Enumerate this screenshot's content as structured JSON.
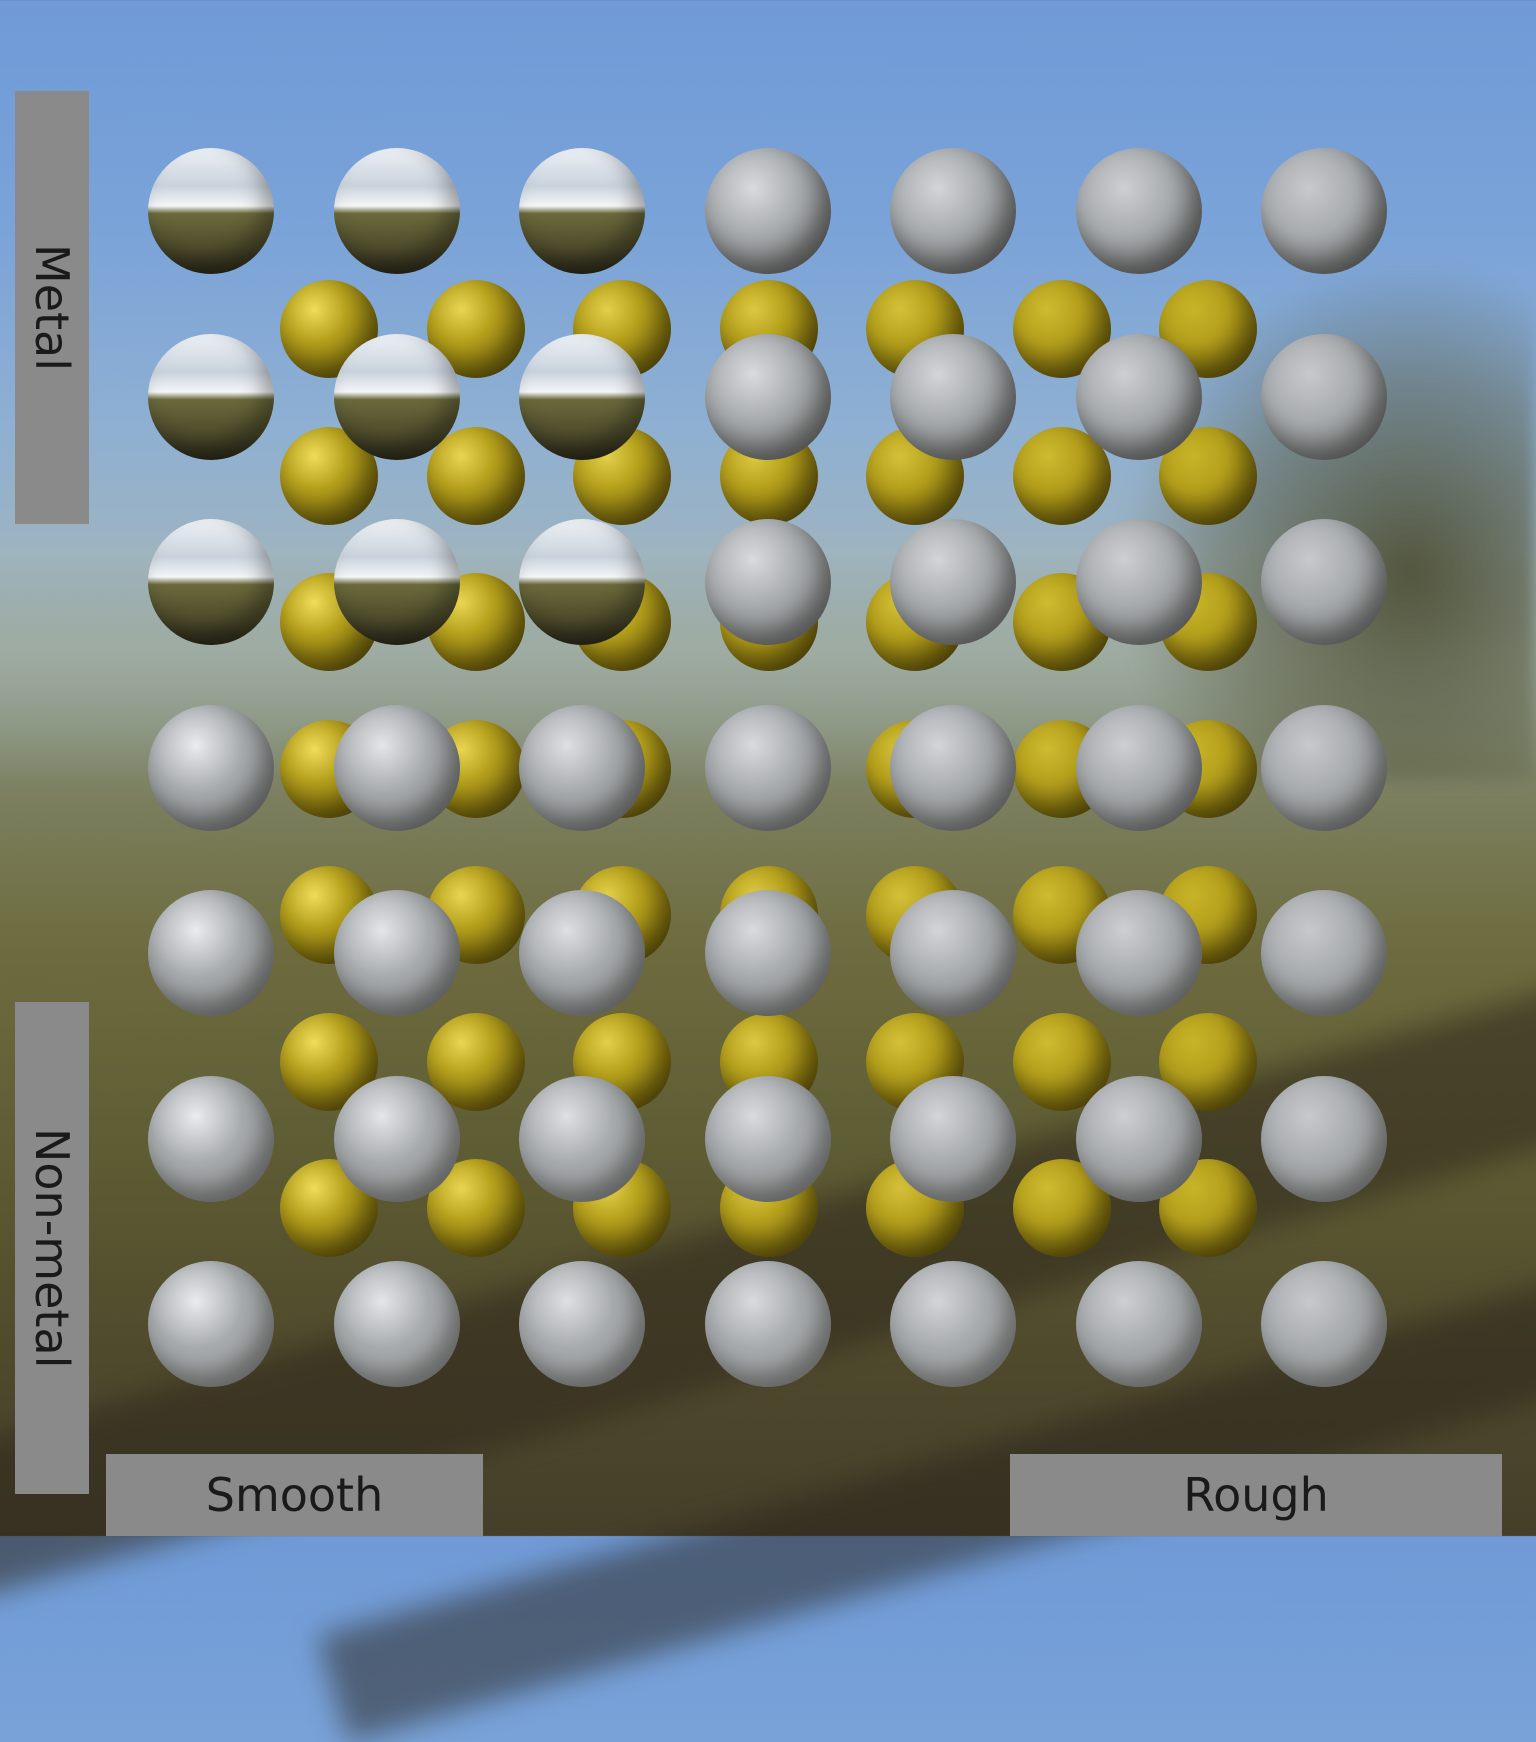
{
  "labels": {
    "metal": "Metal",
    "non_metal": "Non-metal",
    "smooth": "Smooth",
    "rough": "Rough"
  },
  "colors": {
    "panel": "#8a8a8a",
    "label_text": "#1a1a1a",
    "gold_sphere": "#b5a01c",
    "silver_sphere": "#a7abae"
  },
  "scene": {
    "sphere_grid_columns": 7,
    "sphere_grid_rows": 7,
    "gold_grid_columns": 7,
    "gold_grid_rows": 7
  }
}
